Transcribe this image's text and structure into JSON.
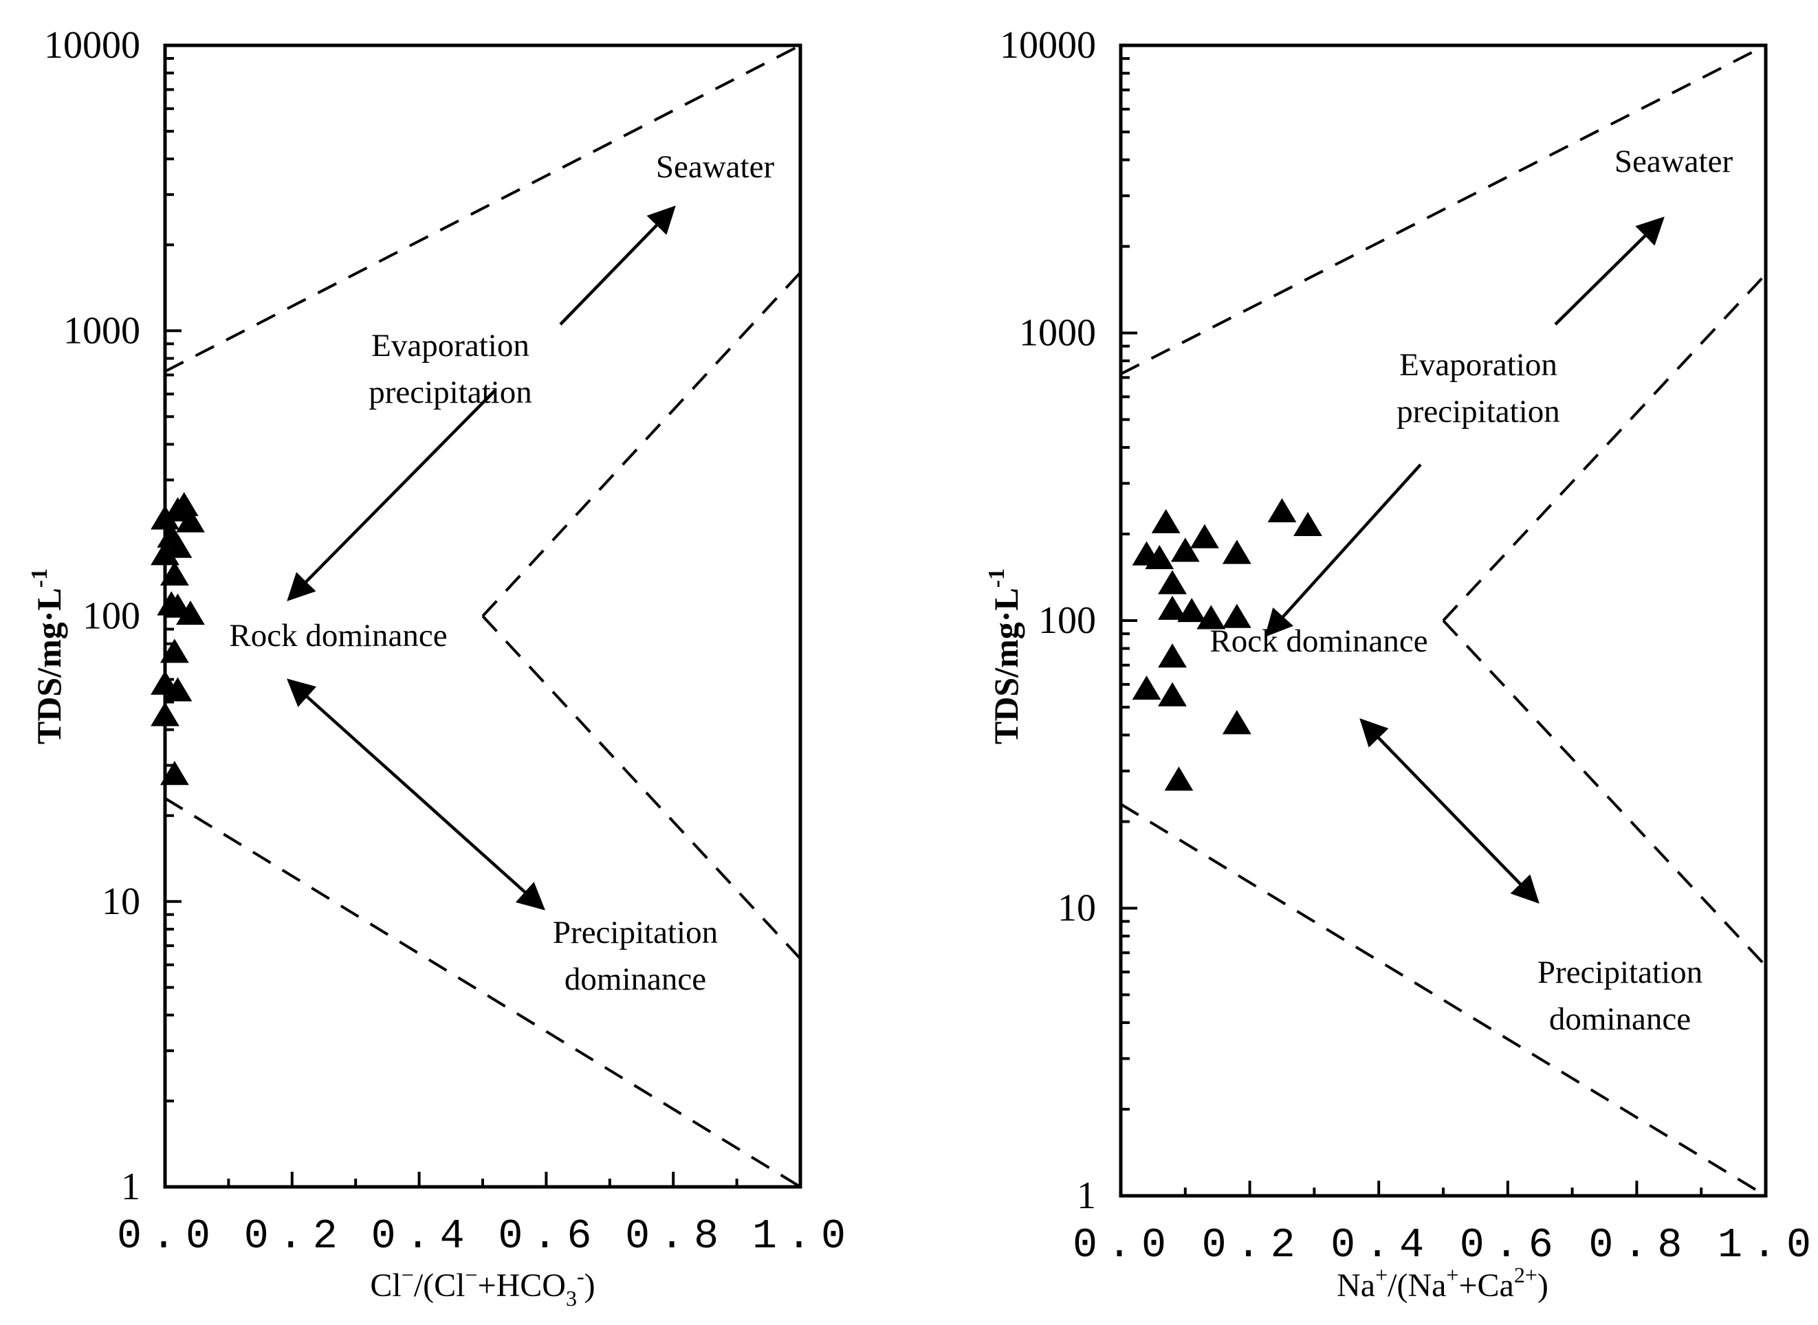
{
  "chart_data": [
    {
      "type": "scatter",
      "title": "",
      "ylabel": "TDS/mg·L-1",
      "ylabel_main": "TDS/mg·L",
      "ylabel_sup": "-1",
      "xlabel_parts": [
        "Cl",
        "−",
        "/(Cl",
        "−",
        "+HCO",
        "3",
        "-",
        ")"
      ],
      "xlim": [
        0,
        1
      ],
      "ylim": [
        1,
        10000
      ],
      "yscale": "log",
      "x_ticks": [
        "0.0",
        "0.2",
        "0.4",
        "0.6",
        "0.8",
        "1.0"
      ],
      "y_ticks": [
        "1",
        "10",
        "100",
        "1000",
        "10000"
      ],
      "annotations": {
        "seawater": "Seawater",
        "evaporation": [
          "Evaporation",
          "precipitation"
        ],
        "rock": "Rock dominance",
        "precipitation": [
          "Precipitation",
          "dominance"
        ]
      },
      "points": [
        {
          "x": 0.0,
          "y": 220
        },
        {
          "x": 0.02,
          "y": 235
        },
        {
          "x": 0.03,
          "y": 245
        },
        {
          "x": 0.04,
          "y": 215
        },
        {
          "x": 0.01,
          "y": 190
        },
        {
          "x": 0.02,
          "y": 175
        },
        {
          "x": 0.0,
          "y": 165
        },
        {
          "x": 0.015,
          "y": 140
        },
        {
          "x": 0.01,
          "y": 110
        },
        {
          "x": 0.02,
          "y": 108
        },
        {
          "x": 0.04,
          "y": 102
        },
        {
          "x": 0.015,
          "y": 75
        },
        {
          "x": 0.0,
          "y": 58
        },
        {
          "x": 0.02,
          "y": 55
        },
        {
          "x": 0.0,
          "y": 45
        },
        {
          "x": 0.015,
          "y": 28
        }
      ]
    },
    {
      "type": "scatter",
      "title": "",
      "ylabel": "TDS/mg·L-1",
      "ylabel_main": "TDS/mg·L",
      "ylabel_sup": "-1",
      "xlabel_parts": [
        "Na",
        "+",
        "/(Na",
        "+",
        "+Ca",
        "2+",
        ")"
      ],
      "xlim": [
        0,
        1
      ],
      "ylim": [
        1,
        10000
      ],
      "yscale": "log",
      "x_ticks": [
        "0.0",
        "0.2",
        "0.4",
        "0.6",
        "0.8",
        "1.0"
      ],
      "y_ticks": [
        "1",
        "10",
        "100",
        "1000",
        "10000"
      ],
      "annotations": {
        "seawater": "Seawater",
        "evaporation": [
          "Evaporation",
          "precipitation"
        ],
        "rock": "Rock dominance",
        "precipitation": [
          "Precipitation",
          "dominance"
        ]
      },
      "points": [
        {
          "x": 0.07,
          "y": 220
        },
        {
          "x": 0.04,
          "y": 170
        },
        {
          "x": 0.06,
          "y": 165
        },
        {
          "x": 0.1,
          "y": 175
        },
        {
          "x": 0.13,
          "y": 195
        },
        {
          "x": 0.18,
          "y": 172
        },
        {
          "x": 0.08,
          "y": 135
        },
        {
          "x": 0.08,
          "y": 110
        },
        {
          "x": 0.11,
          "y": 108
        },
        {
          "x": 0.14,
          "y": 102
        },
        {
          "x": 0.18,
          "y": 103
        },
        {
          "x": 0.08,
          "y": 75
        },
        {
          "x": 0.04,
          "y": 58
        },
        {
          "x": 0.08,
          "y": 55
        },
        {
          "x": 0.18,
          "y": 44
        },
        {
          "x": 0.09,
          "y": 28
        },
        {
          "x": 0.25,
          "y": 240
        },
        {
          "x": 0.29,
          "y": 215
        }
      ]
    }
  ]
}
